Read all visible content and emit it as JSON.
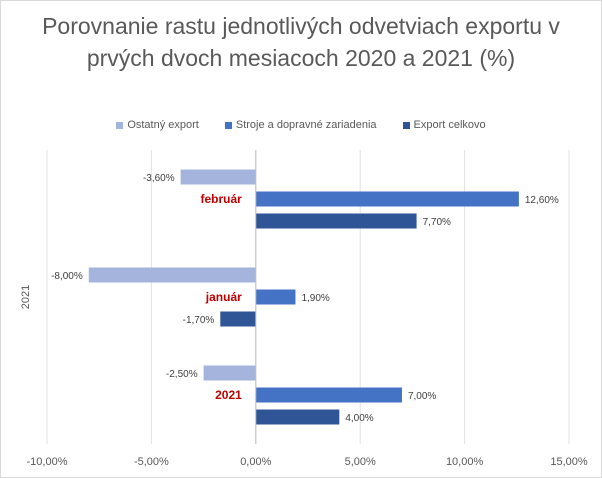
{
  "chart_data": {
    "type": "bar",
    "orientation": "horizontal",
    "title": "Porovnanie rastu jednotlivých odvetviach exportu v prvých dvoch mesiacoch 2020 a 2021 (%)",
    "ylabel": "2021",
    "categories": [
      "február",
      "január",
      "2021"
    ],
    "series": [
      {
        "name": "Ostatný export",
        "color": "#a5b4dc",
        "values": [
          -3.6,
          -8.0,
          -2.5
        ],
        "labels": [
          "-3,60%",
          "-8,00%",
          "-2,50%"
        ]
      },
      {
        "name": "Stroje a dopravné zariadenia",
        "color": "#4472c4",
        "values": [
          12.6,
          1.9,
          7.0
        ],
        "labels": [
          "12,60%",
          "1,90%",
          "7,00%"
        ]
      },
      {
        "name": "Export celkovo",
        "color": "#2f5597",
        "values": [
          7.7,
          -1.7,
          4.0
        ],
        "labels": [
          "7,70%",
          "-1,70%",
          "4,00%"
        ]
      }
    ],
    "xlim": [
      -10,
      15
    ],
    "xticks": [
      -10,
      -5,
      0,
      5,
      10,
      15
    ],
    "xtick_labels": [
      "-10,00%",
      "-5,00%",
      "0,00%",
      "5,00%",
      "10,00%",
      "15,00%"
    ],
    "category_label_color": "#c00000",
    "grid": true,
    "legend_position": "top"
  }
}
